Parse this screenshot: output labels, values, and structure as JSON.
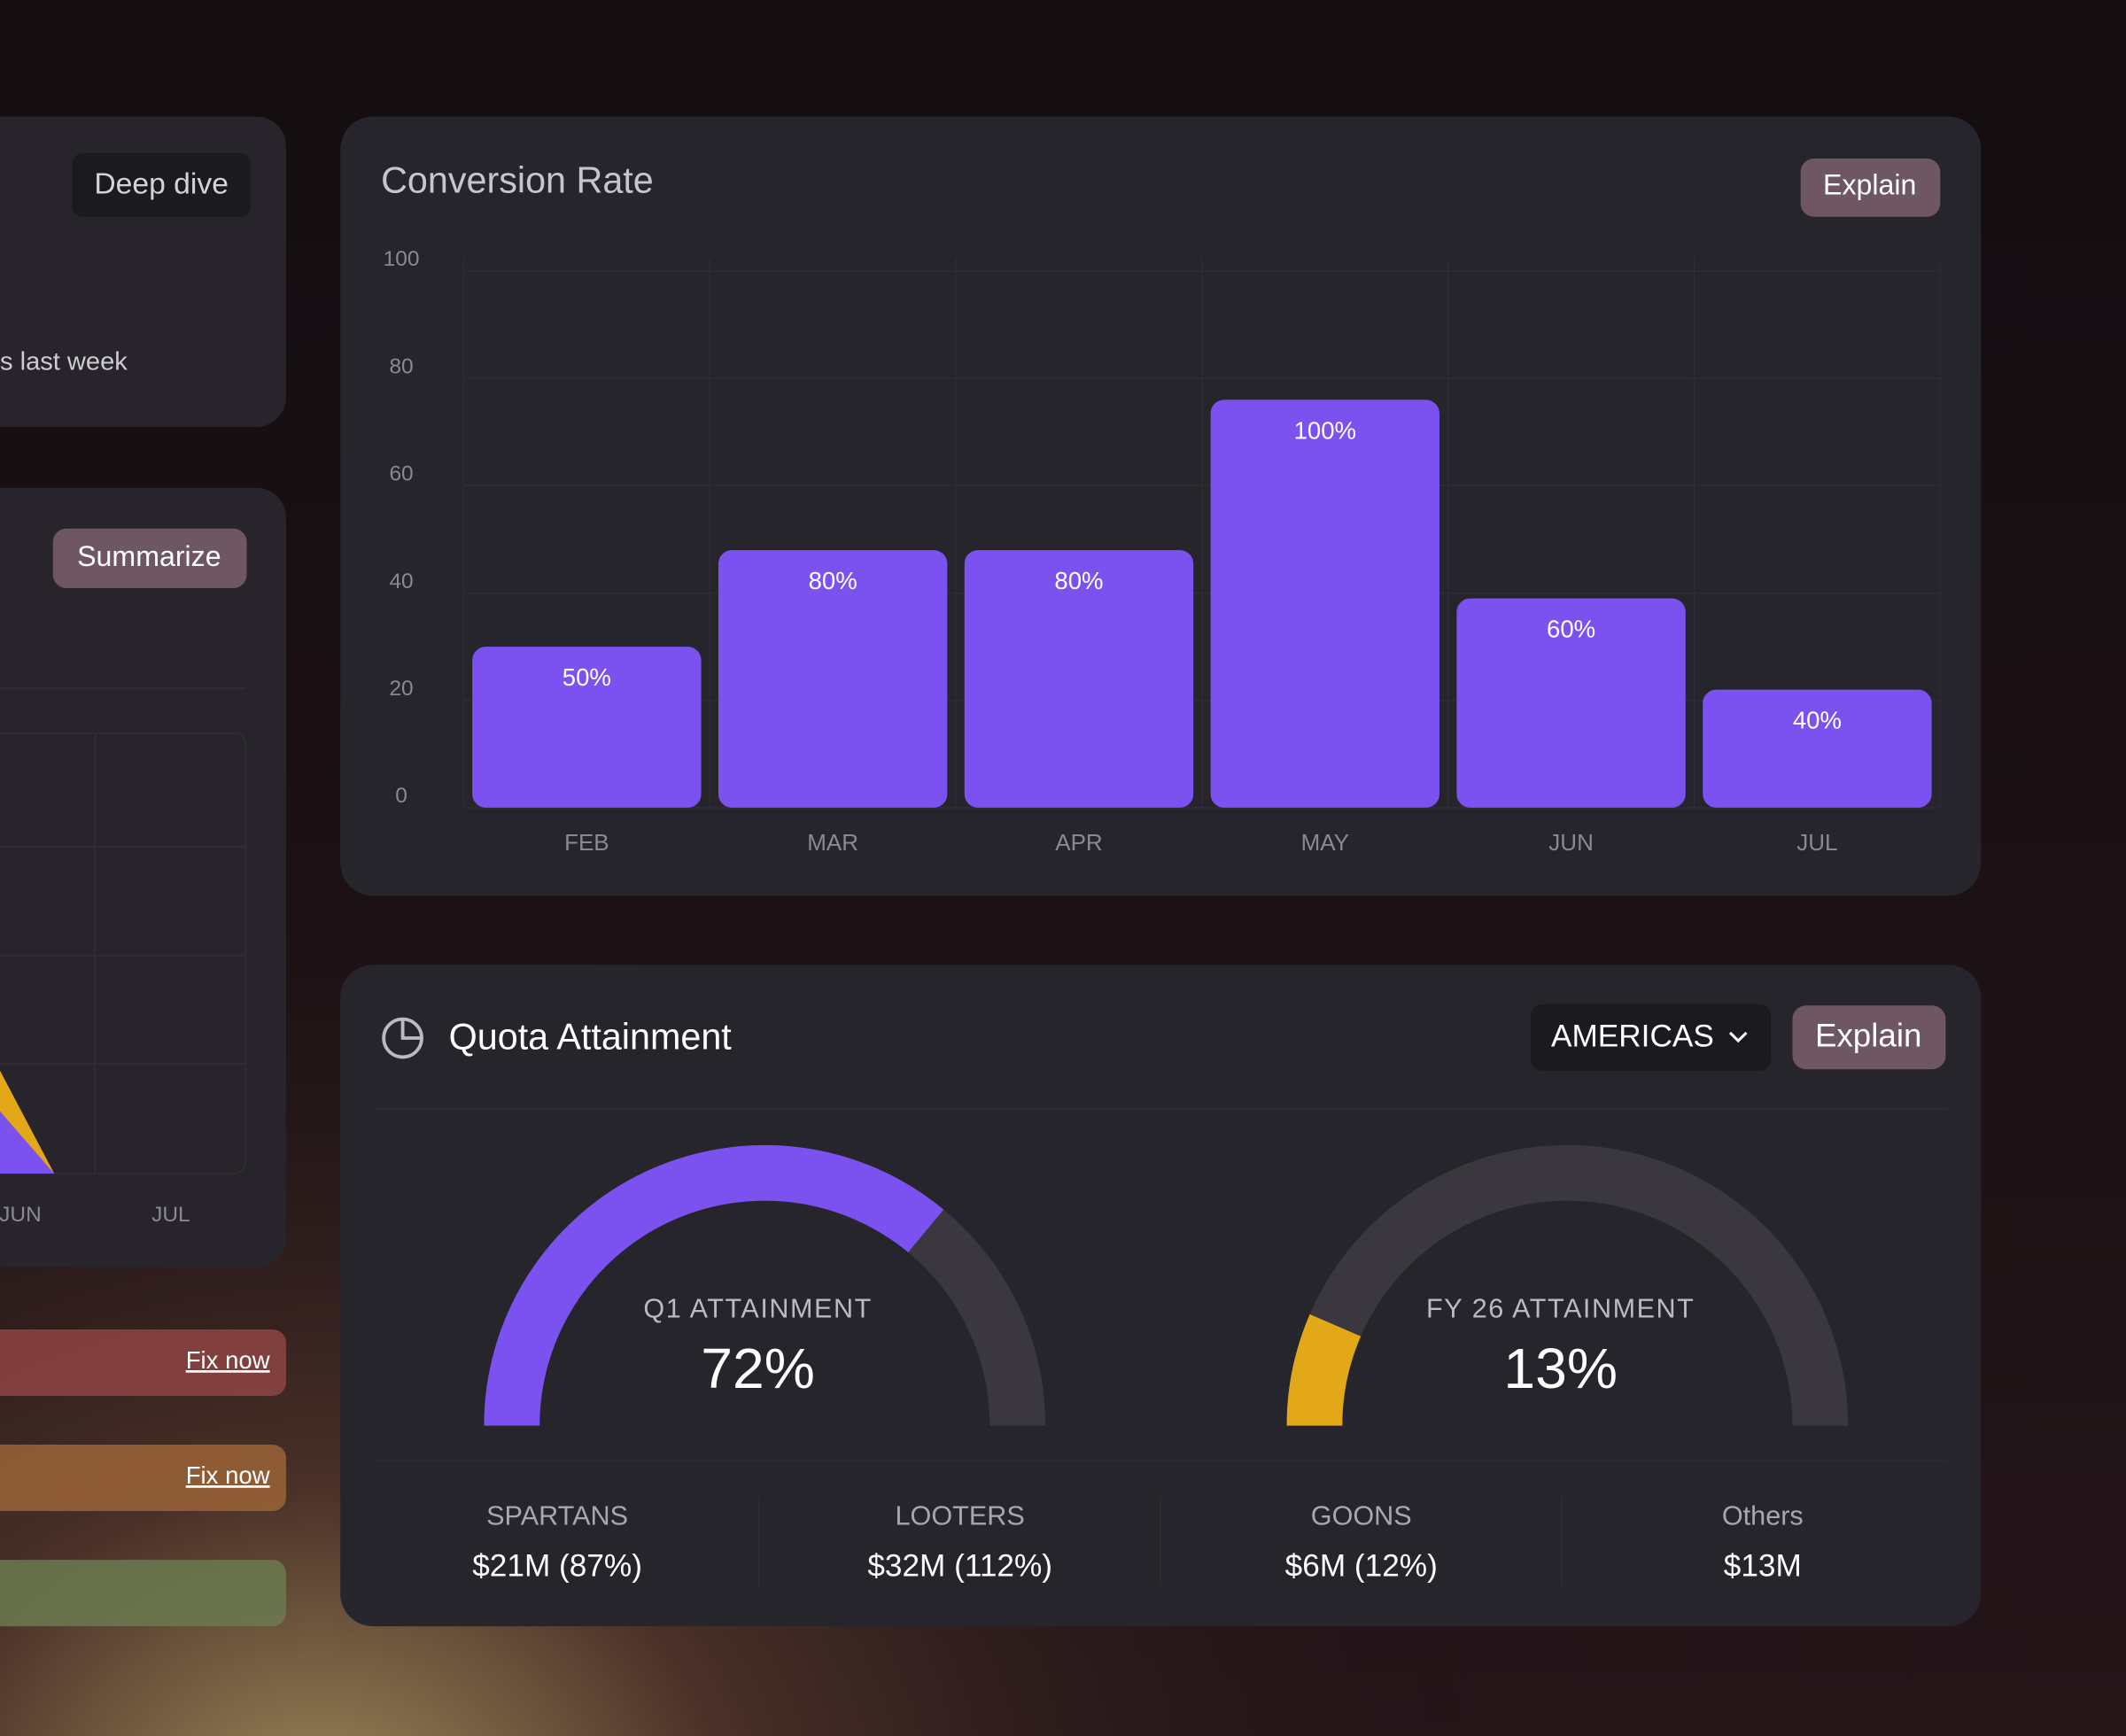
{
  "left_panel": {
    "deep_dive": "Deep dive",
    "note": "s last week",
    "summarize": "Summarize",
    "x_labels": [
      "JUN",
      "JUL"
    ],
    "alerts": [
      "Fix now",
      "Fix now"
    ]
  },
  "chart_data": [
    {
      "type": "bar",
      "title": "Conversion Rate",
      "button": "Explain",
      "categories": [
        "FEB",
        "MAR",
        "APR",
        "MAY",
        "JUN",
        "JUL"
      ],
      "values": [
        30,
        48,
        48,
        76,
        39,
        22
      ],
      "annotations": [
        "50%",
        "80%",
        "80%",
        "100%",
        "60%",
        "40%"
      ],
      "color": "#7b52f0",
      "ylim": [
        0,
        100
      ],
      "yticks": [
        0,
        20,
        40,
        60,
        80,
        100
      ],
      "grid": true
    },
    {
      "type": "gauge",
      "title": "Q1 ATTAINMENT",
      "value": 72,
      "value_label": "72%",
      "lim": [
        0,
        100
      ],
      "color": "#7b52f0",
      "track_color": "#3a383e"
    },
    {
      "type": "gauge",
      "title": "FY 26 ATTAINMENT",
      "value": 13,
      "value_label": "13%",
      "lim": [
        0,
        100
      ],
      "color": "#e3a817",
      "track_color": "#3a383e"
    }
  ],
  "quota": {
    "title": "Quota Attainment",
    "region": "AMERICAS",
    "button": "Explain",
    "stats": [
      {
        "label": "SPARTANS",
        "value": "$21M (87%)"
      },
      {
        "label": "LOOTERS",
        "value": "$32M (112%)"
      },
      {
        "label": "GOONS",
        "value": "$6M (12%)"
      },
      {
        "label": "Others",
        "value": "$13M"
      }
    ]
  }
}
